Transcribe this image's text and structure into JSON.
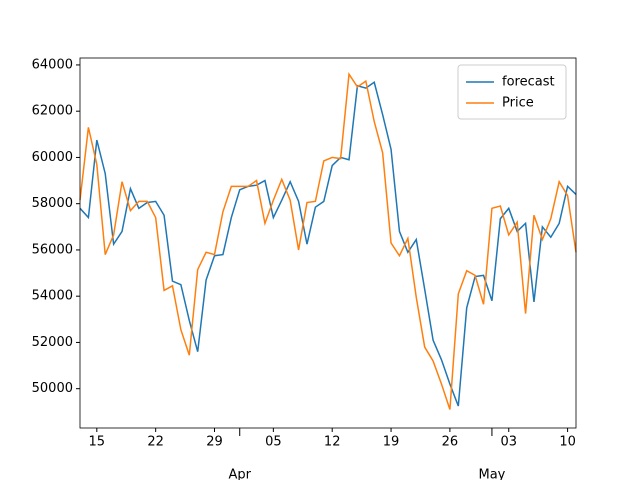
{
  "chart_data": {
    "type": "line",
    "x": [
      "03-13",
      "03-14",
      "03-15",
      "03-16",
      "03-17",
      "03-18",
      "03-19",
      "03-20",
      "03-21",
      "03-22",
      "03-23",
      "03-24",
      "03-25",
      "03-26",
      "03-27",
      "03-28",
      "03-29",
      "03-30",
      "03-31",
      "04-01",
      "04-02",
      "04-03",
      "04-04",
      "04-05",
      "04-06",
      "04-07",
      "04-08",
      "04-09",
      "04-10",
      "04-11",
      "04-12",
      "04-13",
      "04-14",
      "04-15",
      "04-16",
      "04-17",
      "04-18",
      "04-19",
      "04-20",
      "04-21",
      "04-22",
      "04-23",
      "04-24",
      "04-25",
      "04-26",
      "04-27",
      "04-28",
      "04-29",
      "04-30",
      "05-01",
      "05-02",
      "05-03",
      "05-04",
      "05-05",
      "05-06",
      "05-07",
      "05-08",
      "05-09",
      "05-10",
      "05-11"
    ],
    "series": [
      {
        "name": "forecast",
        "color": "#1f77b4",
        "values": [
          57800,
          57400,
          60750,
          59300,
          56250,
          56800,
          58650,
          57800,
          58050,
          58100,
          57500,
          54650,
          54500,
          52950,
          51600,
          54700,
          55750,
          55800,
          57400,
          58600,
          58750,
          58800,
          59000,
          57400,
          58150,
          58950,
          58100,
          56250,
          57850,
          58100,
          59650,
          60000,
          59900,
          63100,
          63000,
          63250,
          61850,
          60350,
          56800,
          55900,
          56450,
          54300,
          52100,
          51250,
          50200,
          49250,
          53500,
          54850,
          54900,
          53800,
          57350,
          57800,
          56800,
          57150,
          53750,
          57000,
          56550,
          57150,
          58750,
          58400
        ]
      },
      {
        "name": "Price",
        "color": "#ff7f0e",
        "values": [
          58150,
          61300,
          59700,
          55800,
          56650,
          58950,
          57700,
          58100,
          58100,
          57400,
          54250,
          54450,
          52550,
          51450,
          55150,
          55900,
          55800,
          57650,
          58750,
          58750,
          58750,
          59000,
          57150,
          58150,
          59050,
          58150,
          56000,
          58050,
          58100,
          59850,
          60000,
          59950,
          63600,
          63050,
          63300,
          61550,
          60200,
          56300,
          55750,
          56500,
          53950,
          51800,
          51200,
          50200,
          49100,
          54100,
          55100,
          54900,
          53650,
          57800,
          57900,
          56650,
          57200,
          53250,
          57500,
          56450,
          57350,
          58950,
          58350,
          55900
        ]
      }
    ],
    "xticks": [
      {
        "value": "03-15",
        "label": "15"
      },
      {
        "value": "03-22",
        "label": "22"
      },
      {
        "value": "03-29",
        "label": "29"
      },
      {
        "value": "04-05",
        "label": "05"
      },
      {
        "value": "04-12",
        "label": "12"
      },
      {
        "value": "04-19",
        "label": "19"
      },
      {
        "value": "04-26",
        "label": "26"
      },
      {
        "value": "05-03",
        "label": "03"
      },
      {
        "value": "05-10",
        "label": "10"
      }
    ],
    "month_ticks": [
      {
        "value": "04-01",
        "label": "Apr"
      },
      {
        "value": "05-01",
        "label": "May"
      }
    ],
    "ylim": [
      48300,
      64300
    ],
    "yticks": [
      50000,
      52000,
      54000,
      56000,
      58000,
      60000,
      62000,
      64000
    ],
    "legend": "upper right"
  }
}
